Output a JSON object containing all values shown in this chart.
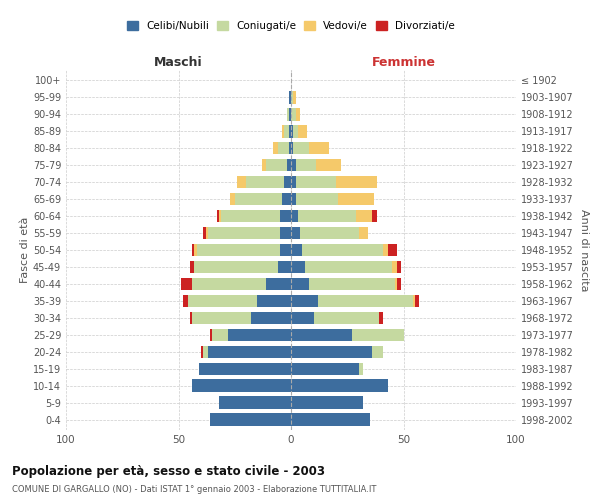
{
  "age_groups": [
    "0-4",
    "5-9",
    "10-14",
    "15-19",
    "20-24",
    "25-29",
    "30-34",
    "35-39",
    "40-44",
    "45-49",
    "50-54",
    "55-59",
    "60-64",
    "65-69",
    "70-74",
    "75-79",
    "80-84",
    "85-89",
    "90-94",
    "95-99",
    "100+"
  ],
  "birth_years": [
    "1998-2002",
    "1993-1997",
    "1988-1992",
    "1983-1987",
    "1978-1982",
    "1973-1977",
    "1968-1972",
    "1963-1967",
    "1958-1962",
    "1953-1957",
    "1948-1952",
    "1943-1947",
    "1938-1942",
    "1933-1937",
    "1928-1932",
    "1923-1927",
    "1918-1922",
    "1913-1917",
    "1908-1912",
    "1903-1907",
    "≤ 1902"
  ],
  "maschi": {
    "celibi": [
      36,
      32,
      44,
      41,
      37,
      28,
      18,
      15,
      11,
      6,
      5,
      5,
      5,
      4,
      3,
      2,
      1,
      1,
      1,
      1,
      0
    ],
    "coniugati": [
      0,
      0,
      0,
      0,
      2,
      7,
      26,
      31,
      33,
      37,
      37,
      32,
      26,
      21,
      17,
      9,
      5,
      2,
      1,
      0,
      0
    ],
    "vedovi": [
      0,
      0,
      0,
      0,
      0,
      0,
      0,
      0,
      0,
      0,
      1,
      1,
      1,
      2,
      4,
      2,
      2,
      1,
      0,
      0,
      0
    ],
    "divorziati": [
      0,
      0,
      0,
      0,
      1,
      1,
      1,
      2,
      5,
      2,
      1,
      1,
      1,
      0,
      0,
      0,
      0,
      0,
      0,
      0,
      0
    ]
  },
  "femmine": {
    "nubili": [
      35,
      32,
      43,
      30,
      36,
      27,
      10,
      12,
      8,
      6,
      5,
      4,
      3,
      2,
      2,
      2,
      1,
      1,
      0,
      0,
      0
    ],
    "coniugate": [
      0,
      0,
      0,
      2,
      5,
      23,
      29,
      42,
      38,
      39,
      36,
      26,
      26,
      19,
      18,
      9,
      7,
      2,
      2,
      1,
      0
    ],
    "vedove": [
      0,
      0,
      0,
      0,
      0,
      0,
      0,
      1,
      1,
      2,
      2,
      4,
      7,
      16,
      18,
      11,
      9,
      4,
      2,
      1,
      0
    ],
    "divorziate": [
      0,
      0,
      0,
      0,
      0,
      0,
      2,
      2,
      2,
      2,
      4,
      0,
      2,
      0,
      0,
      0,
      0,
      0,
      0,
      0,
      0
    ]
  },
  "colors": {
    "celibi": "#3d6d9e",
    "coniugati": "#c5d9a0",
    "vedovi": "#f5c96a",
    "divorziati": "#cc2222"
  },
  "title": "Popolazione per età, sesso e stato civile - 2003",
  "subtitle": "COMUNE DI GARGALLO (NO) - Dati ISTAT 1° gennaio 2003 - Elaborazione TUTTITALIA.IT",
  "xlabel_left": "Maschi",
  "xlabel_right": "Femmine",
  "ylabel_left": "Fasce di età",
  "ylabel_right": "Anni di nascita",
  "xlim": 100,
  "legend_labels": [
    "Celibi/Nubili",
    "Coniugati/e",
    "Vedovi/e",
    "Divorziati/e"
  ],
  "background_color": "#ffffff"
}
